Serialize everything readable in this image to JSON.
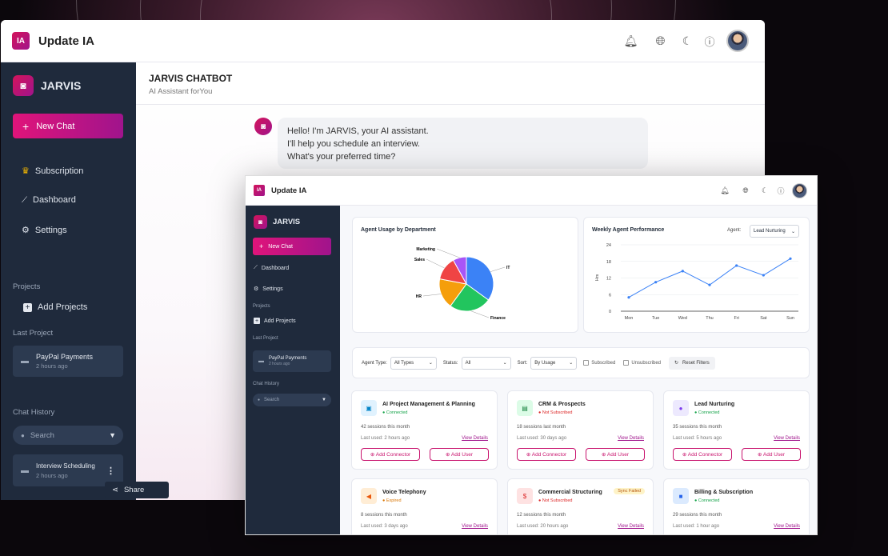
{
  "app": {
    "title": "Update IA",
    "logo": "IA"
  },
  "sidebar": {
    "brand": "JARVIS",
    "new_chat": "New Chat",
    "nav": [
      {
        "label": "Subscription",
        "icon": "crown-icon"
      },
      {
        "label": "Dashboard",
        "icon": "chart-icon"
      },
      {
        "label": "Settings",
        "icon": "gear-icon"
      }
    ],
    "projects_title": "Projects",
    "add_projects": "Add Projects",
    "last_project_title": "Last Project",
    "last_project": {
      "name": "PayPal Payments",
      "time": "2 hours ago"
    },
    "chat_history_title": "Chat History",
    "search_placeholder": "Search",
    "chat_item": {
      "name": "Interview Scheduling",
      "time": "2 hours ago"
    },
    "share": "Share"
  },
  "chat": {
    "title": "JARVIS CHATBOT",
    "subtitle": "AI Assistant forYou",
    "message": [
      "Hello! I'm JARVIS, your AI assistant.",
      "I'll help you schedule an interview.",
      "What's your preferred time?"
    ]
  },
  "dash": {
    "sidebar": {
      "brand": "JARVIS",
      "new_chat": "New Chat",
      "nav": [
        "Dashboard",
        "Settings"
      ],
      "projects": "Projects",
      "add_projects": "Add Projects",
      "last_project": "Last Project",
      "paypal": "PayPal Payments",
      "time": "2 hours ago",
      "chat_history": "Chat History",
      "search": "Search"
    },
    "pie": {
      "title": "Agent Usage by Department"
    },
    "line": {
      "title": "Weekly Agent Performance",
      "agent_label": "Agent:",
      "agent_value": "Lead Nurturing"
    },
    "filters": {
      "agent_type_label": "Agent Type:",
      "agent_type": "All Types",
      "status_label": "Status:",
      "status": "All",
      "sort_label": "Sort:",
      "sort": "By Usage",
      "subscribed": "Subscribed",
      "unsubscribed": "Unsubscribed",
      "reset": "Reset Filters"
    },
    "cards": [
      {
        "title": "AI Project Management & Planning",
        "status": "Connected",
        "cls": "conn",
        "sessions": "42 sessions this month",
        "used": "Last used: 2 hours ago",
        "color": "#e0f2fe",
        "iconc": "#0284c7",
        "glyph": "▣",
        "badge": ""
      },
      {
        "title": "CRM & Prospects",
        "status": "Not Subscribed",
        "cls": "nosub",
        "sessions": "18 sessions last month",
        "used": "Last used: 30 days ago",
        "color": "#dcfce7",
        "iconc": "#15803d",
        "glyph": "▤",
        "badge": ""
      },
      {
        "title": "Lead Nurturing",
        "status": "Connected",
        "cls": "conn",
        "sessions": "35 sessions this month",
        "used": "Last used: 5 hours ago",
        "color": "#ede9fe",
        "iconc": "#7c3aed",
        "glyph": "●",
        "badge": ""
      },
      {
        "title": "Voice Telephony",
        "status": "Expired",
        "cls": "exp",
        "sessions": "8 sessions this month",
        "used": "Last used: 3 days ago",
        "color": "#ffedd5",
        "iconc": "#ea580c",
        "glyph": "◀",
        "badge": ""
      },
      {
        "title": "Commercial Structuring",
        "status": "Not Subscribed",
        "cls": "nosub",
        "sessions": "12 sessions this month",
        "used": "Last used: 20 hours ago",
        "color": "#fee2e2",
        "iconc": "#dc2626",
        "glyph": "$",
        "badge": "Sync Failed"
      },
      {
        "title": "Billing & Subscription",
        "status": "Connected",
        "cls": "conn",
        "sessions": "29 sessions this month",
        "used": "Last used: 1 hour ago",
        "color": "#dbeafe",
        "iconc": "#2563eb",
        "glyph": "■",
        "badge": ""
      }
    ],
    "view_details": "View Details",
    "add_connector": "Add Connector",
    "add_user": "Add User"
  },
  "chart_data": [
    {
      "type": "pie",
      "title": "Agent Usage by Department",
      "categories": [
        "IT",
        "Finance",
        "HR",
        "Sales",
        "Marketing"
      ],
      "values": [
        35,
        25,
        18,
        14,
        8
      ],
      "colors": [
        "#3b82f6",
        "#22c55e",
        "#f59e0b",
        "#ef4444",
        "#a855f7"
      ]
    },
    {
      "type": "line",
      "title": "Weekly Agent Performance",
      "ylabel": "Hrs",
      "categories": [
        "Mon",
        "Tue",
        "Wed",
        "Thu",
        "Fri",
        "Sat",
        "Sun"
      ],
      "values": [
        5,
        10.5,
        14.5,
        9.5,
        16.5,
        13,
        19
      ],
      "ylim": [
        0,
        24
      ],
      "yticks": [
        "0",
        "6",
        "12",
        "18",
        "24"
      ],
      "color": "#3b82f6"
    }
  ]
}
